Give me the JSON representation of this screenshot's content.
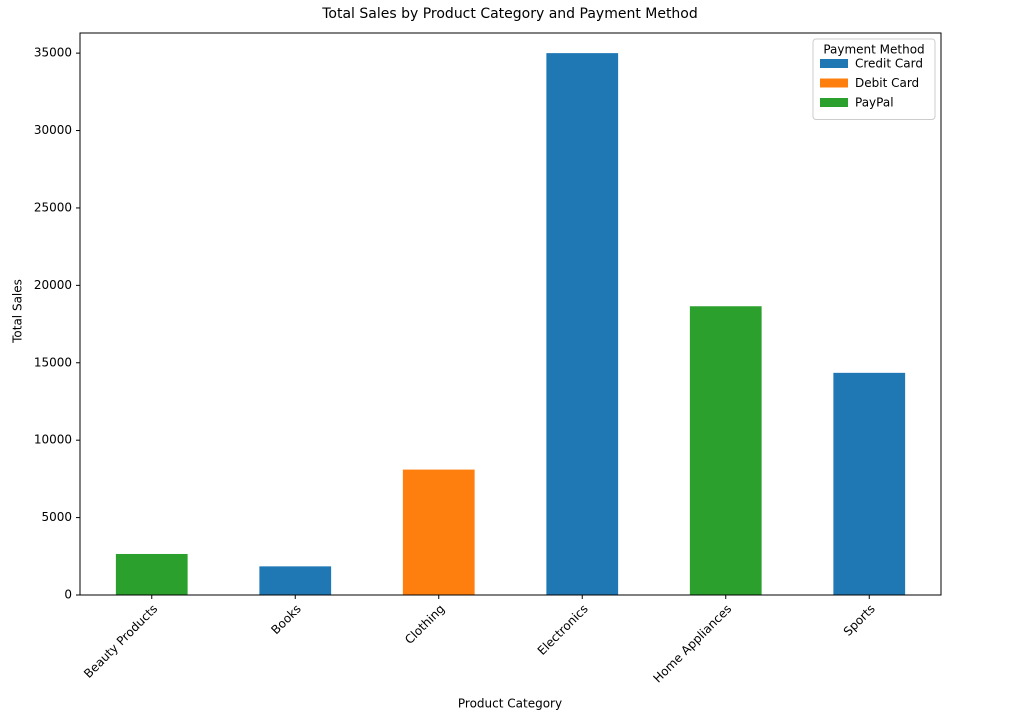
{
  "chart_data": {
    "type": "stacked_bar",
    "title": "Total Sales by Product Category and Payment Method",
    "x_label": "Product Category",
    "y_label": "Total Sales",
    "categories": [
      "Beauty Products",
      "Books",
      "Clothing",
      "Electronics",
      "Home Appliances",
      "Sports"
    ],
    "series": [
      {
        "name": "Credit Card",
        "color": "#1f77b4",
        "values": [
          0,
          1850,
          0,
          35000,
          0,
          14350
        ]
      },
      {
        "name": "Debit Card",
        "color": "#ff7f0e",
        "values": [
          0,
          0,
          8100,
          0,
          0,
          0
        ]
      },
      {
        "name": "PayPal",
        "color": "#2ca02c",
        "values": [
          2650,
          0,
          0,
          0,
          18650,
          0
        ]
      }
    ],
    "legend_title": "Payment Method",
    "legend_position": "upper right",
    "ylim": [
      0,
      36300
    ],
    "yticks": [
      0,
      5000,
      10000,
      15000,
      20000,
      25000,
      30000,
      35000
    ],
    "grid": false
  }
}
